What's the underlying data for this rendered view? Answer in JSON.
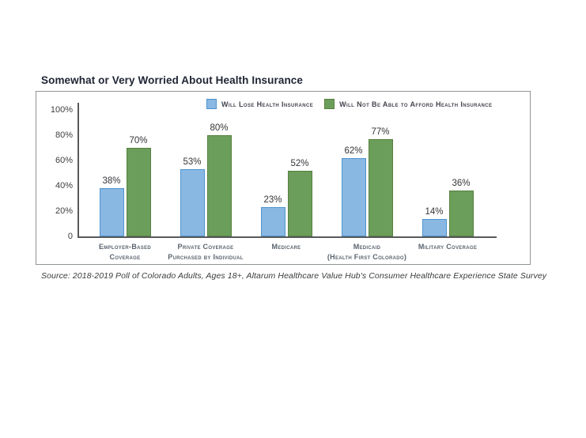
{
  "page": {
    "source": "Source: 2018-2019 Poll of Colorado Adults, Ages 18+, Altarum Healthcare Value Hub's Consumer Healthcare Experience State Survey"
  },
  "colors": {
    "frame_border": "#8f9598",
    "axis_line": "#58595b",
    "title_text": "#1f2433",
    "category_text": "#5a646e",
    "series1_fill": "#89b8e3",
    "series1_border": "#4e94ce",
    "series2_fill": "#6b9e5a",
    "series2_border": "#57803f"
  },
  "chart_data": {
    "type": "bar",
    "title": "Somewhat or Very Worried About Health Insurance",
    "categories": [
      "Employer-Based Coverage",
      "Private Coverage Purchased by Individual",
      "Medicare",
      "Medicaid (Health First Colorado)",
      "Military Coverage"
    ],
    "categories_lines": [
      [
        "Employer-Based",
        "Coverage"
      ],
      [
        "Private Coverage",
        "Purchased by Individual"
      ],
      [
        "Medicare"
      ],
      [
        "Medicaid",
        "(Health First Colorado)"
      ],
      [
        "Military Coverage"
      ]
    ],
    "series": [
      {
        "name": "Will Lose Health Insurance",
        "fill": "#89b8e3",
        "border": "#4e94ce",
        "values": [
          38,
          53,
          23,
          62,
          14
        ]
      },
      {
        "name": "Will Not Be Able to Afford Health Insurance",
        "fill": "#6b9e5a",
        "border": "#57803f",
        "values": [
          70,
          80,
          52,
          77,
          36
        ]
      }
    ],
    "value_suffix": "%",
    "y_ticks": [
      "100%",
      "80%",
      "60%",
      "40%",
      "20%",
      "0"
    ],
    "ylim": [
      0,
      100
    ],
    "grid": false,
    "legend_position": "top",
    "xlabel": "",
    "ylabel": ""
  }
}
